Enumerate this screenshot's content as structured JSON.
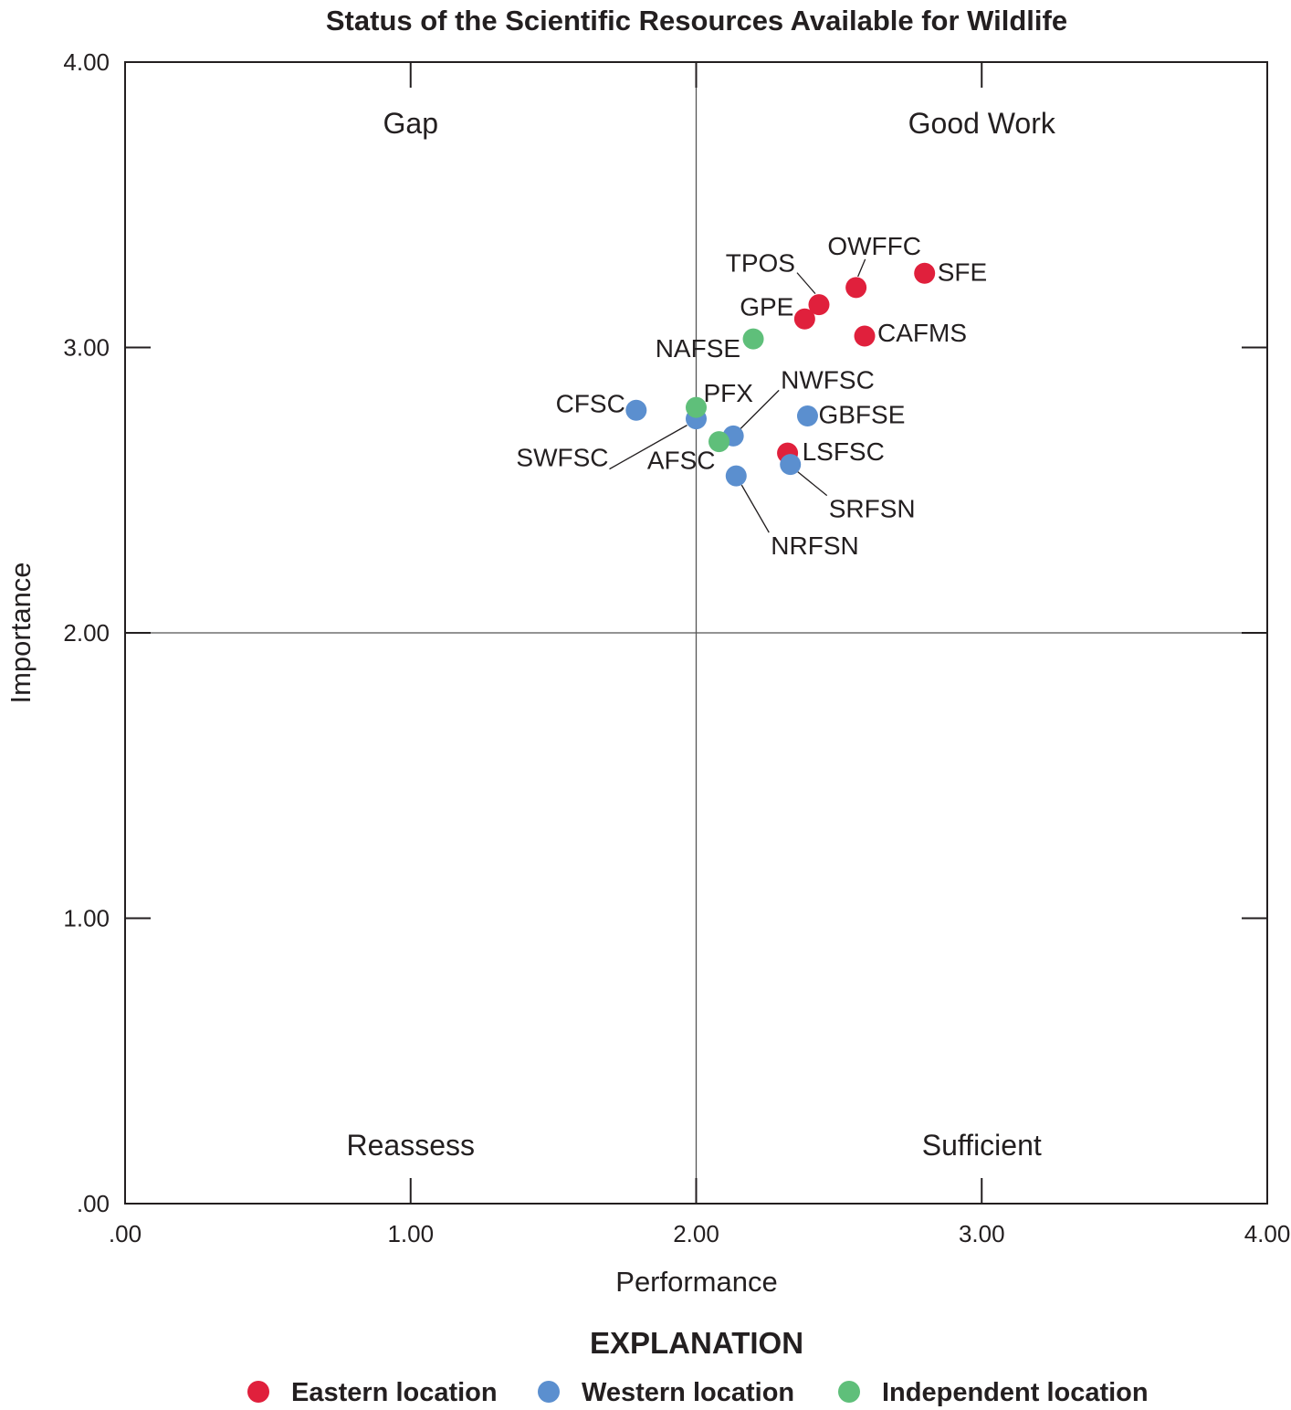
{
  "chart_data": {
    "type": "scatter",
    "title": "Status of the Scientific Resources Available for Wildlife",
    "xlabel": "Performance",
    "ylabel": "Importance",
    "xlim": [
      0,
      4
    ],
    "ylim": [
      0,
      4
    ],
    "x_ticks": [
      ".00",
      "1.00",
      "2.00",
      "3.00",
      "4.00"
    ],
    "y_ticks": [
      ".00",
      "1.00",
      "2.00",
      "3.00",
      "4.00"
    ],
    "quadrant_divider": {
      "x": 2.0,
      "y": 2.0
    },
    "quadrants": {
      "top_left": "Gap",
      "top_right": "Good Work",
      "bottom_left": "Reassess",
      "bottom_right": "Sufficient"
    },
    "legend_title": "EXPLANATION",
    "legend_position": "bottom",
    "series": [
      {
        "name": "Eastern location",
        "color": "#e0203c",
        "points": [
          {
            "label": "OWFFC",
            "x": 2.56,
            "y": 3.21
          },
          {
            "label": "SFE",
            "x": 2.8,
            "y": 3.26
          },
          {
            "label": "TPOS",
            "x": 2.43,
            "y": 3.15
          },
          {
            "label": "GPE",
            "x": 2.38,
            "y": 3.1
          },
          {
            "label": "CAFMS",
            "x": 2.59,
            "y": 3.04
          },
          {
            "label": "LSFSC",
            "x": 2.32,
            "y": 2.63
          }
        ]
      },
      {
        "name": "Western location",
        "color": "#5b8fcf",
        "points": [
          {
            "label": "CFSC",
            "x": 1.79,
            "y": 2.78
          },
          {
            "label": "SWFSC",
            "x": 2.0,
            "y": 2.75
          },
          {
            "label": "NWFSC",
            "x": 2.13,
            "y": 2.69
          },
          {
            "label": "GBFSE",
            "x": 2.39,
            "y": 2.76
          },
          {
            "label": "SRFSN",
            "x": 2.33,
            "y": 2.59
          },
          {
            "label": "NRFSN",
            "x": 2.14,
            "y": 2.55
          }
        ]
      },
      {
        "name": "Independent location",
        "color": "#5fbf7a",
        "points": [
          {
            "label": "NAFSE",
            "x": 2.2,
            "y": 3.03
          },
          {
            "label": "PFX",
            "x": 2.0,
            "y": 2.79
          },
          {
            "label": "AFSC",
            "x": 2.08,
            "y": 2.67
          }
        ]
      }
    ]
  }
}
